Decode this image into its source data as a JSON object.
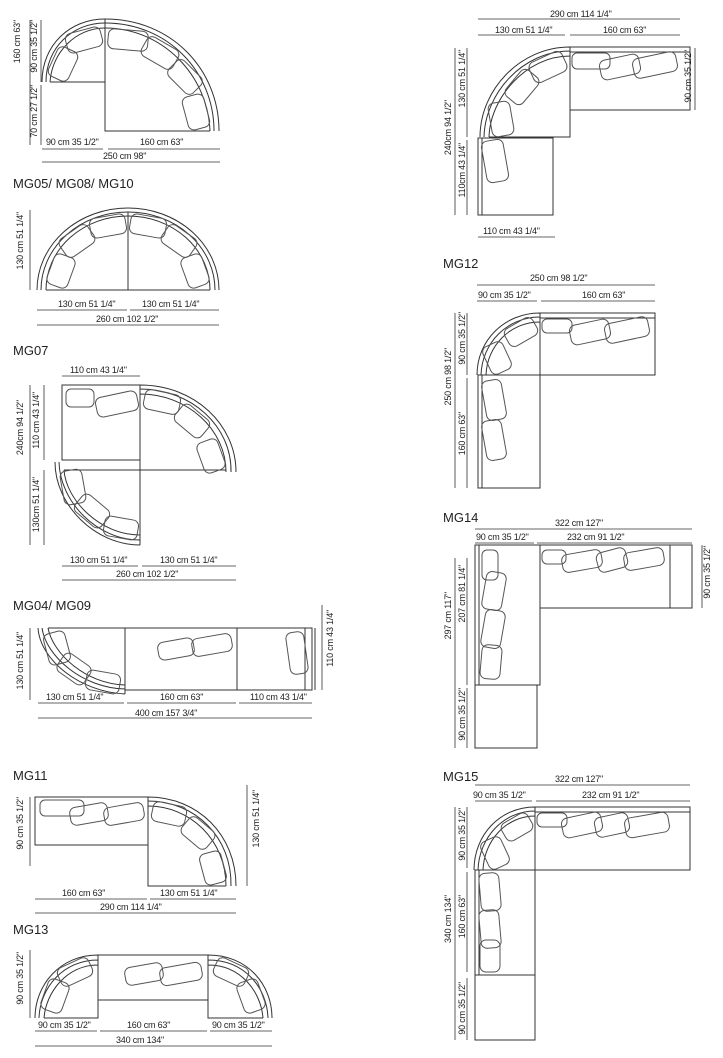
{
  "diagrams": [
    {
      "title": "",
      "dims": [
        "160 cm  63\"",
        "90 cm  35 1/2\"",
        "70 cm  27 1/2\"",
        "90 cm  35 1/2\"",
        "160 cm  63\"",
        "250 cm  98\""
      ]
    },
    {
      "title": "MG05/ MG08/ MG10",
      "dims": [
        "130 cm  51 1/4\"",
        "130 cm  51 1/4\"",
        "130 cm  51 1/4\"",
        "260 cm  102 1/2\""
      ]
    },
    {
      "title": "MG07",
      "dims": [
        "110 cm  43 1/4\"",
        "240cm  94 1/2\"",
        "110 cm  43 1/4\"",
        "130cm  51 1/4\"",
        "130 cm  51 1/4\"",
        "130 cm  51 1/4\"",
        "260 cm  102 1/2\""
      ]
    },
    {
      "title": "MG04/ MG09",
      "dims": [
        "130 cm  51 1/4\"",
        "110 cm  43 1/4\"",
        "130 cm  51 1/4\"",
        "160 cm  63\"",
        "110 cm  43 1/4\"",
        "400 cm  157 3/4\""
      ]
    },
    {
      "title": "MG11",
      "dims": [
        "90 cm  35 1/2\"",
        "130 cm  51 1/4\"",
        "160 cm  63\"",
        "130 cm  51 1/4\"",
        "290 cm  114 1/4\""
      ]
    },
    {
      "title": "MG13",
      "dims": [
        "90 cm  35 1/2\"",
        "90 cm  35 1/2\"",
        "160 cm  63\"",
        "90 cm  35 1/2\"",
        "340 cm  134\""
      ]
    },
    {
      "title": "",
      "dims": [
        "290 cm  114 1/4\"",
        "130 cm  51 1/4\"",
        "160 cm  63\"",
        "240cm  94 1/2\"",
        "130 cm  51 1/4\"",
        "110cm  43 1/4\"",
        "90 cm  35 1/2\"",
        "110 cm  43 1/4\""
      ]
    },
    {
      "title": "MG12",
      "dims": [
        "250 cm  98 1/2\"",
        "90 cm  35 1/2\"",
        "160 cm  63\"",
        "250 cm  98 1/2\"",
        "90 cm  35 1/2\"",
        "160 cm  63\""
      ]
    },
    {
      "title": "MG14",
      "dims": [
        "322 cm  127\"",
        "90 cm  35 1/2\"",
        "232 cm  91 1/2\"",
        "90 cm  35 1/2\"",
        "297 cm  117\"",
        "207 cm  81 1/4\"",
        "90 cm  35 1/2\""
      ]
    },
    {
      "title": "MG15",
      "dims": [
        "322 cm  127\"",
        "90 cm  35 1/2\"",
        "232 cm  91 1/2\"",
        "340 cm  134\"",
        "90 cm  35 1/2\"",
        "160 cm  63\"",
        "90 cm  35 1/2\""
      ]
    }
  ]
}
